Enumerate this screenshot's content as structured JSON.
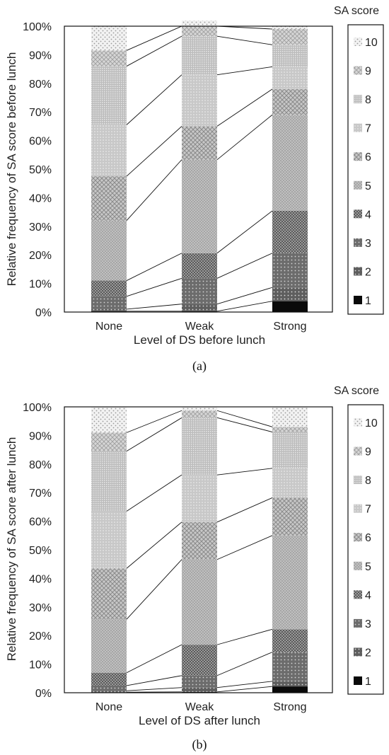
{
  "chart_data": [
    {
      "type": "bar",
      "stacked": true,
      "panel_label": "(a)",
      "legend_title": "SA score",
      "xlabel": "Level of DS before lunch",
      "ylabel": "Relative frequency of SA score before lunch",
      "ylim": [
        0,
        100
      ],
      "yticks": [
        "0%",
        "10%",
        "20%",
        "30%",
        "40%",
        "50%",
        "60%",
        "70%",
        "80%",
        "90%",
        "100%"
      ],
      "categories": [
        "None",
        "Weak",
        "Strong"
      ],
      "series": [
        {
          "name": "1",
          "values": [
            0.3,
            0.3,
            3.8
          ]
        },
        {
          "name": "2",
          "values": [
            0.7,
            2.5,
            4.8
          ]
        },
        {
          "name": "3",
          "values": [
            4.5,
            9.0,
            12.0
          ]
        },
        {
          "name": "4",
          "values": [
            5.5,
            8.8,
            14.8
          ]
        },
        {
          "name": "5",
          "values": [
            21.0,
            32.7,
            33.6
          ]
        },
        {
          "name": "6",
          "values": [
            15.5,
            11.7,
            9.0
          ]
        },
        {
          "name": "7",
          "values": [
            18.0,
            18.0,
            7.8
          ]
        },
        {
          "name": "8",
          "values": [
            20.5,
            13.5,
            7.7
          ]
        },
        {
          "name": "9",
          "values": [
            5.5,
            3.5,
            5.5
          ]
        },
        {
          "name": "10",
          "values": [
            8.5,
            2.0,
            1.0
          ]
        }
      ],
      "legend": "right",
      "grid": false
    },
    {
      "type": "bar",
      "stacked": true,
      "panel_label": "(b)",
      "legend_title": "SA score",
      "xlabel": "Level of DS after lunch",
      "ylabel": "Relative frequency of SA score after lunch",
      "ylim": [
        0,
        100
      ],
      "yticks": [
        "0%",
        "10%",
        "20%",
        "30%",
        "40%",
        "50%",
        "60%",
        "70%",
        "80%",
        "90%",
        "100%"
      ],
      "categories": [
        "None",
        "Weak",
        "Strong"
      ],
      "series": [
        {
          "name": "1",
          "values": [
            0.2,
            0.3,
            2.2
          ]
        },
        {
          "name": "2",
          "values": [
            0.5,
            1.5,
            1.8
          ]
        },
        {
          "name": "3",
          "values": [
            1.8,
            4.2,
            10.2
          ]
        },
        {
          "name": "4",
          "values": [
            4.5,
            10.8,
            8.0
          ]
        },
        {
          "name": "5",
          "values": [
            18.7,
            29.8,
            32.8
          ]
        },
        {
          "name": "6",
          "values": [
            17.8,
            13.1,
            13.2
          ]
        },
        {
          "name": "7",
          "values": [
            20.0,
            16.5,
            10.3
          ]
        },
        {
          "name": "8",
          "values": [
            21.0,
            20.0,
            12.7
          ]
        },
        {
          "name": "9",
          "values": [
            6.5,
            2.5,
            1.8
          ]
        },
        {
          "name": "10",
          "values": [
            9.0,
            1.3,
            7.0
          ]
        }
      ],
      "legend": "right",
      "grid": false
    }
  ],
  "colors": {
    "frame": "#111111",
    "connector": "#111111",
    "score_1": "#0a0a0a",
    "score_2": "#5c5c5c",
    "score_3": "#646464",
    "score_4": "#727272",
    "score_5": "#9c9c9c",
    "score_6": "#a8a8a8",
    "score_7": "#bababa",
    "score_8": "#b4b4b4",
    "score_9": "#cfcfcf",
    "score_10": "#e6e6e6"
  }
}
